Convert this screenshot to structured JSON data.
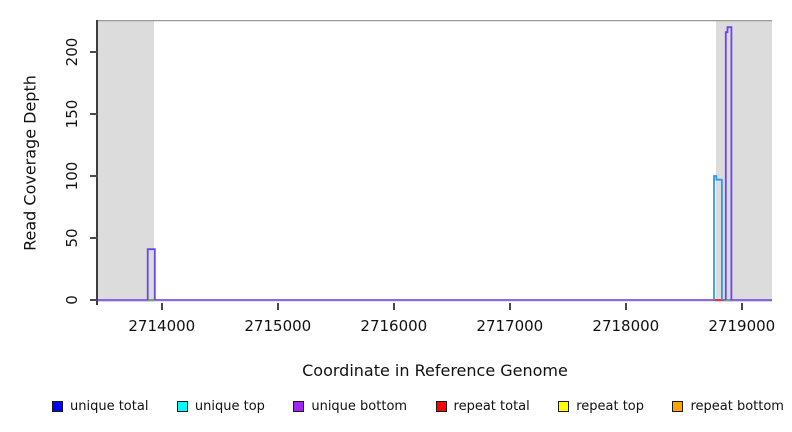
{
  "chart_data": {
    "type": "line",
    "title": "",
    "xlabel": "Coordinate in Reference Genome",
    "ylabel": "Read Coverage Depth",
    "xlim": [
      2713450,
      2719260
    ],
    "ylim": [
      0,
      227
    ],
    "x_ticks": [
      2714000,
      2715000,
      2716000,
      2717000,
      2718000,
      2719000
    ],
    "y_ticks": [
      0,
      50,
      100,
      150,
      200
    ],
    "grid": false,
    "legend_position": "bottom",
    "frame": {
      "top_border_color": "#9b9b9b",
      "axis_color": "#3d3d3d",
      "tick_color": "#4a4a4a"
    },
    "shaded_regions": [
      {
        "x1": 2713450,
        "x2": 2713933,
        "color": "#dcdcdc"
      },
      {
        "x1": 2718777,
        "x2": 2719260,
        "color": "#dcdcdc"
      }
    ],
    "series_paths": [
      {
        "name": "baseline-halo",
        "color": "#e2c2ec",
        "width": 1.0,
        "points": [
          [
            2713450,
            -1.6
          ],
          [
            2719260,
            -1.6
          ]
        ]
      },
      {
        "name": "zero-coverage-baseline",
        "color": "#7a55e8",
        "width": 1.8,
        "points": [
          [
            2713450,
            0
          ],
          [
            2719260,
            0
          ]
        ]
      },
      {
        "name": "repeat-total-baseline-mark",
        "color": "#e8312a",
        "width": 1.8,
        "points": [
          [
            2718757,
            0
          ],
          [
            2718842,
            0
          ]
        ]
      },
      {
        "name": "overlap-baseline-mark-left",
        "color": "#58c14e",
        "width": 1.8,
        "points": [
          [
            2713882,
            0
          ],
          [
            2713936,
            0
          ]
        ]
      },
      {
        "name": "overlap-baseline-mark-right",
        "color": "#58c14e",
        "width": 1.8,
        "points": [
          [
            2718858,
            0
          ],
          [
            2718898,
            0
          ]
        ]
      },
      {
        "name": "unique-bottom-spike-left",
        "color": "#6b46e8",
        "width": 1.8,
        "points": [
          [
            2713878,
            0
          ],
          [
            2713878,
            41
          ],
          [
            2713940,
            41
          ],
          [
            2713940,
            0
          ]
        ]
      },
      {
        "name": "unique-top-spike",
        "color": "#2d9bea",
        "width": 1.8,
        "points": [
          [
            2718760,
            0
          ],
          [
            2718760,
            100
          ],
          [
            2718780,
            100
          ],
          [
            2718780,
            97
          ],
          [
            2718828,
            97
          ],
          [
            2718828,
            0
          ]
        ]
      },
      {
        "name": "unique-bottom-spike-right",
        "color": "#6b46e8",
        "width": 1.8,
        "points": [
          [
            2718862,
            0
          ],
          [
            2718862,
            216
          ],
          [
            2718876,
            216
          ],
          [
            2718876,
            220
          ],
          [
            2718910,
            220
          ],
          [
            2718910,
            0
          ]
        ]
      }
    ]
  },
  "legend": {
    "swatch_border_color": "#1a1a1a",
    "items": [
      {
        "label": "unique total",
        "color": "#0000ff"
      },
      {
        "label": "unique top",
        "color": "#00ffff"
      },
      {
        "label": "unique bottom",
        "color": "#a125f0"
      },
      {
        "label": "repeat total",
        "color": "#ff0000"
      },
      {
        "label": "repeat top",
        "color": "#ffff00"
      },
      {
        "label": "repeat bottom",
        "color": "#ffa500"
      }
    ]
  }
}
